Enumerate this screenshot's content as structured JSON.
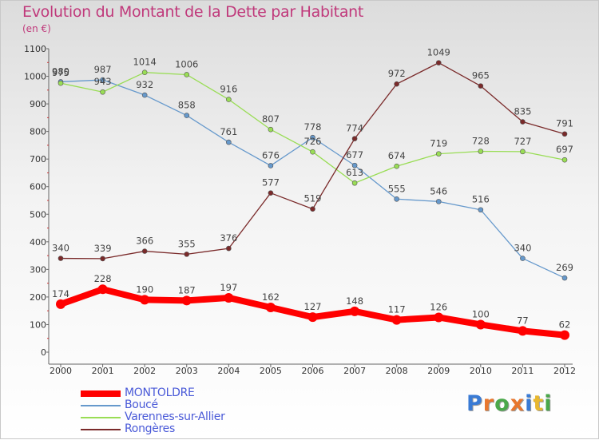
{
  "chart_data": {
    "type": "line",
    "title": "Evolution du Montant de la Dette par Habitant",
    "subtitle": "(en €)",
    "xlabel": "",
    "ylabel": "",
    "x": [
      "2000",
      "2001",
      "2002",
      "2003",
      "2004",
      "2005",
      "2006",
      "2007",
      "2008",
      "2009",
      "2010",
      "2011",
      "2012"
    ],
    "ylim": [
      0,
      1100
    ],
    "yticks": [
      0,
      100,
      200,
      300,
      400,
      500,
      600,
      700,
      800,
      900,
      1000,
      1100
    ],
    "grid": false,
    "legend_position": "bottom-left",
    "series": [
      {
        "name": "MONTOLDRE",
        "color": "#ff0000",
        "values": [
          174,
          228,
          190,
          187,
          197,
          162,
          127,
          148,
          117,
          126,
          100,
          77,
          62
        ]
      },
      {
        "name": "Boucé",
        "color": "#6699cc",
        "values": [
          980,
          987,
          932,
          858,
          761,
          676,
          778,
          677,
          555,
          546,
          516,
          340,
          269
        ]
      },
      {
        "name": "Varennes-sur-Allier",
        "color": "#99dd55",
        "values": [
          975,
          943,
          1014,
          1006,
          916,
          807,
          726,
          613,
          674,
          719,
          728,
          727,
          697
        ]
      },
      {
        "name": "Rongères",
        "color": "#7a2a2a",
        "values": [
          340,
          339,
          366,
          355,
          376,
          577,
          519,
          774,
          972,
          1049,
          965,
          835,
          791
        ]
      }
    ],
    "data_labels": {
      "MONTOLDRE": [
        "174",
        "228",
        "190",
        "187",
        "197",
        "162",
        "127",
        "148",
        "117",
        "126",
        "100",
        "77",
        "62"
      ],
      "Boucé": [
        "980",
        "987",
        "932",
        "858",
        "761",
        "676",
        "778",
        "677",
        "555",
        "546",
        "516",
        "340",
        "269"
      ],
      "Varennes-sur-Allier": [
        "975",
        "943",
        "1014",
        "1006",
        "916",
        "807",
        "726",
        "613",
        "674",
        "719",
        "728",
        "727",
        "697"
      ],
      "Rongères": [
        "340",
        "339",
        "366",
        "355",
        "376",
        "577",
        "519",
        "774",
        "972",
        "1049",
        "965",
        "835",
        "791"
      ]
    }
  },
  "logo": {
    "text": "Proxiti",
    "colors": [
      "#3a7bd5",
      "#e8772e",
      "#4aa84a",
      "#e8772e",
      "#3a7bd5",
      "#e8b82e",
      "#4aa84a"
    ]
  }
}
